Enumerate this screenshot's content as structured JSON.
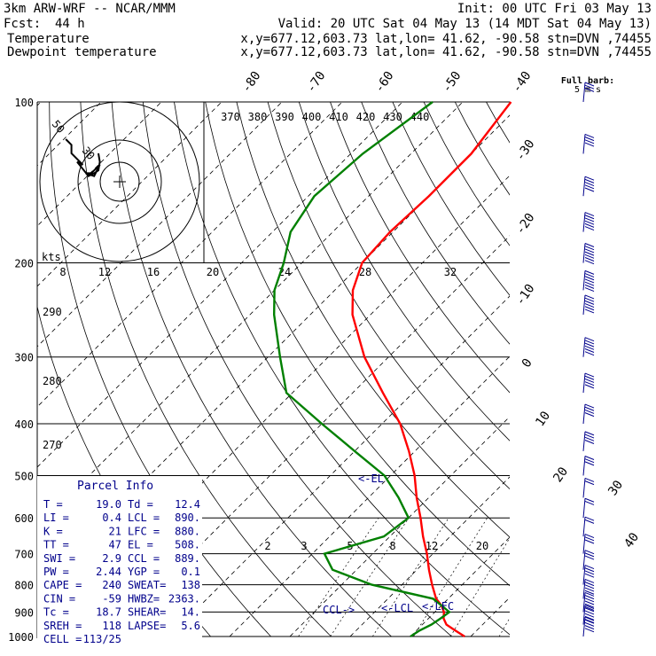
{
  "header": {
    "model": "3km ARW-WRF -- NCAR/MMM",
    "init": "Init: 00 UTC Fri 03 May 13",
    "fcst_label": "Fcst:",
    "fcst_value": "44 h",
    "valid": "Valid: 20 UTC Sat 04 May 13 (14 MDT Sat 04 May 13)",
    "temp_label": "Temperature",
    "dew_label": "Dewpoint temperature",
    "temp_info": "x,y=677.12,603.73   lat,lon= 41.62, -90.58  stn=DVN ,74455",
    "dew_info": "x,y=677.12,603.73   lat,lon= 41.62, -90.58  stn=DVN ,74455",
    "temp_color": "#ff0000",
    "dew_color": "#008000"
  },
  "chart_data": {
    "type": "line",
    "title": "Skew-T log-P sounding",
    "y_axis": "pressure (hPa)",
    "pressure_ticks": [
      "100",
      "200",
      "300",
      "400",
      "500",
      "600",
      "700",
      "800",
      "900",
      "1000"
    ],
    "isotherm_labels": [
      "-80",
      "-70",
      "-60",
      "-50",
      "-40",
      "-30",
      "-20",
      "-10",
      "0",
      "10",
      "20",
      "30",
      "40"
    ],
    "theta_labels": [
      "370",
      "380",
      "390",
      "400",
      "410",
      "420",
      "430",
      "440"
    ],
    "mixing_ratio_labels": [
      "2",
      "3",
      "5",
      "8",
      "12",
      "20"
    ],
    "theta_e_labels": [
      "290",
      "280",
      "270"
    ],
    "wetbulb_labels": [
      "8",
      "12",
      "16",
      "20",
      "24",
      "28",
      "32"
    ],
    "series": [
      {
        "name": "Temperature",
        "color": "#ff0000",
        "points": [
          [
            1000,
            19.0
          ],
          [
            975,
            16.5
          ],
          [
            950,
            14.0
          ],
          [
            925,
            12.5
          ],
          [
            900,
            11.5
          ],
          [
            875,
            10.0
          ],
          [
            850,
            8.0
          ],
          [
            800,
            5.0
          ],
          [
            750,
            2.0
          ],
          [
            700,
            -1.0
          ],
          [
            650,
            -4.5
          ],
          [
            600,
            -8.0
          ],
          [
            550,
            -12.0
          ],
          [
            500,
            -16.0
          ],
          [
            450,
            -21.0
          ],
          [
            400,
            -27.0
          ],
          [
            350,
            -35.0
          ],
          [
            300,
            -44.0
          ],
          [
            250,
            -53.0
          ],
          [
            225,
            -57.0
          ],
          [
            200,
            -60.0
          ],
          [
            175,
            -60.5
          ],
          [
            150,
            -60.0
          ],
          [
            125,
            -60.0
          ],
          [
            100,
            -62.0
          ]
        ]
      },
      {
        "name": "Dewpoint temperature",
        "color": "#008000",
        "points": [
          [
            1000,
            10.0
          ],
          [
            975,
            10.5
          ],
          [
            950,
            11.5
          ],
          [
            925,
            12.0
          ],
          [
            900,
            12.4
          ],
          [
            875,
            10.0
          ],
          [
            850,
            7.5
          ],
          [
            800,
            -5.0
          ],
          [
            750,
            -14.0
          ],
          [
            700,
            -18.0
          ],
          [
            650,
            -11.0
          ],
          [
            600,
            -10.0
          ],
          [
            550,
            -15.0
          ],
          [
            500,
            -21.0
          ],
          [
            450,
            -30.0
          ],
          [
            400,
            -40.0
          ],
          [
            350,
            -51.0
          ],
          [
            300,
            -58.0
          ],
          [
            250,
            -66.0
          ],
          [
            225,
            -70.0
          ],
          [
            200,
            -73.0
          ],
          [
            175,
            -77.0
          ],
          [
            150,
            -79.0
          ],
          [
            125,
            -78.0
          ],
          [
            100,
            -75.0
          ]
        ]
      }
    ],
    "levels_markers": [
      {
        "label": "CCL",
        "pressure": 889
      },
      {
        "label": "LCL",
        "pressure": 890
      },
      {
        "label": "LFC",
        "pressure": 880
      },
      {
        "label": "EL",
        "pressure": 508
      }
    ]
  },
  "hodograph": {
    "units": "kts",
    "ring_labels": [
      "50",
      "30"
    ],
    "path": [
      [
        -15,
        20
      ],
      [
        -14,
        14
      ],
      [
        -15,
        8
      ],
      [
        -18,
        6
      ],
      [
        -22,
        4
      ],
      [
        -20,
        6
      ],
      [
        -24,
        6
      ],
      [
        -18,
        4
      ],
      [
        -14,
        12
      ],
      [
        -22,
        4
      ],
      [
        -30,
        14
      ],
      [
        -26,
        12
      ],
      [
        -34,
        20
      ],
      [
        -34,
        26
      ],
      [
        -38,
        30
      ]
    ]
  },
  "parcel_info": {
    "title": "Parcel Info",
    "rows": [
      [
        "T  =",
        "19.0",
        "Td =",
        "12.4"
      ],
      [
        "LI =",
        "0.4",
        "LCL =",
        "890."
      ],
      [
        "K  =",
        "21",
        "LFC =",
        "880."
      ],
      [
        "TT =",
        "47",
        "EL =",
        "508."
      ],
      [
        "SWI =",
        "2.9",
        "CCL =",
        "889."
      ],
      [
        "PW =",
        "2.44",
        "YGP =",
        "0.1"
      ],
      [
        "CAPE =",
        "240",
        "SWEAT=",
        "138"
      ],
      [
        "CIN =",
        "-59",
        "HWBZ=",
        "2363."
      ],
      [
        "Tc =",
        "18.7",
        "SHEAR=",
        "14."
      ],
      [
        "SREH =",
        "118",
        "LAPSE=",
        "5.6"
      ],
      [
        "CELL =",
        "113/25",
        "",
        ""
      ]
    ]
  },
  "winds": {
    "title_line1": "Full barb:",
    "title_line2": "5 m s",
    "barbs": [
      [
        100,
        3
      ],
      [
        125,
        4
      ],
      [
        150,
        5
      ],
      [
        175,
        6
      ],
      [
        200,
        7
      ],
      [
        225,
        7
      ],
      [
        250,
        6
      ],
      [
        300,
        6
      ],
      [
        350,
        5
      ],
      [
        400,
        4
      ],
      [
        450,
        4
      ],
      [
        500,
        3
      ],
      [
        550,
        2
      ],
      [
        600,
        2
      ],
      [
        650,
        2
      ],
      [
        700,
        3
      ],
      [
        750,
        3
      ],
      [
        800,
        4
      ],
      [
        850,
        5
      ],
      [
        900,
        6
      ],
      [
        950,
        6
      ],
      [
        1000,
        5
      ]
    ]
  }
}
